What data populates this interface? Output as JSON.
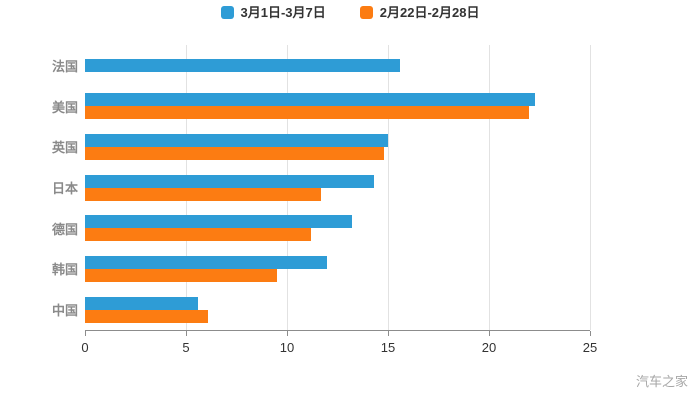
{
  "chart_data": {
    "type": "bar",
    "orientation": "horizontal",
    "title": "",
    "categories": [
      "法国",
      "美国",
      "英国",
      "日本",
      "德国",
      "韩国",
      "中国"
    ],
    "series": [
      {
        "name": "3月1日-3月7日",
        "color": "#2e9cd6",
        "values": [
          15.6,
          22.3,
          15.0,
          14.3,
          13.2,
          12.0,
          5.6
        ]
      },
      {
        "name": "2月22日-2月28日",
        "color": "#fc7c12",
        "values": [
          0,
          22.0,
          14.8,
          11.7,
          11.2,
          9.5,
          6.1
        ]
      }
    ],
    "xlim": [
      0,
      25
    ],
    "xticks": [
      0,
      5,
      10,
      15,
      20,
      25
    ],
    "grid": true,
    "legend_position": "top"
  },
  "watermark": "汽车之家"
}
